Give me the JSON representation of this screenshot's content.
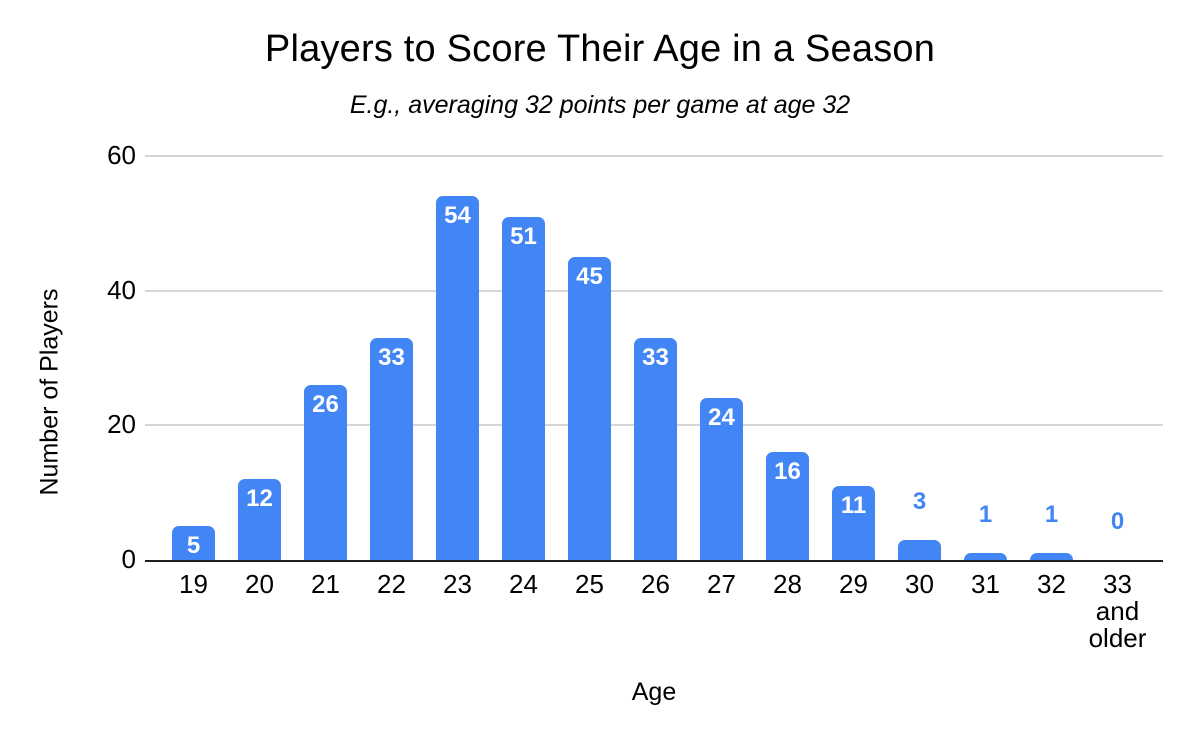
{
  "chart_data": {
    "type": "bar",
    "title": "Players to Score Their Age in a Season",
    "subtitle": "E.g., averaging 32 points per game at age 32",
    "xlabel": "Age",
    "ylabel": "Number of Players",
    "ylim": [
      0,
      60
    ],
    "yticks": [
      0,
      20,
      40,
      60
    ],
    "categories": [
      "19",
      "20",
      "21",
      "22",
      "23",
      "24",
      "25",
      "26",
      "27",
      "28",
      "29",
      "30",
      "31",
      "32",
      "33\nand\nolder"
    ],
    "values": [
      5,
      12,
      26,
      33,
      54,
      51,
      45,
      33,
      24,
      16,
      11,
      3,
      1,
      1,
      0
    ],
    "grid": "horizontal",
    "legend": "none",
    "colors": {
      "bar": "#4285f4",
      "label_inside": "#ffffff",
      "label_outside": "#4285f4",
      "gridline": "#d6d6d6",
      "axis_line": "#1f1f1f",
      "text": "#000000"
    }
  }
}
